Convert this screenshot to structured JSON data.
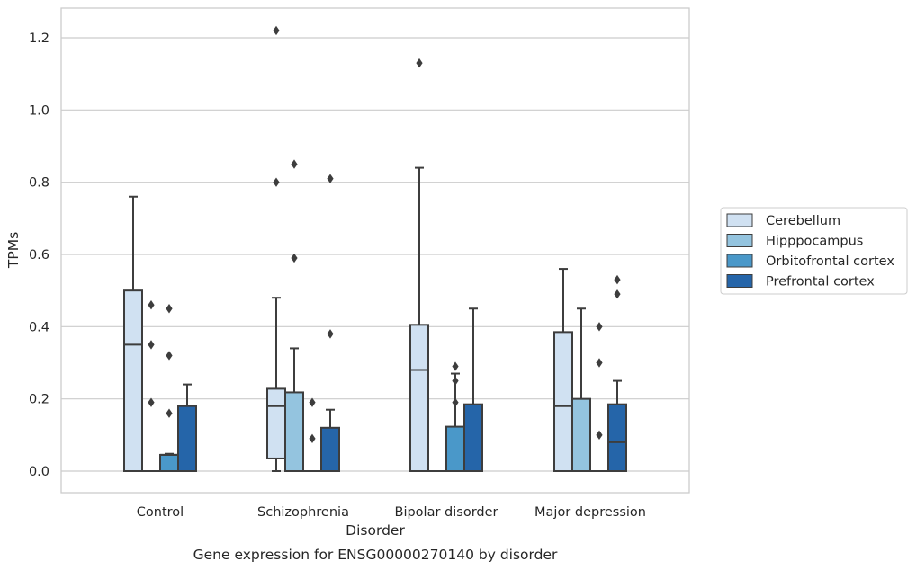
{
  "chart_data": {
    "type": "box",
    "xlabel": "Disorder",
    "ylabel": "TPMs",
    "caption": "Gene expression for ENSG00000270140 by disorder",
    "ylim": [
      -0.06,
      1.28
    ],
    "yticks": [
      0.0,
      0.2,
      0.4,
      0.6,
      0.8,
      1.0,
      1.2
    ],
    "ytick_labels": [
      "0.0",
      "0.2",
      "0.4",
      "0.6",
      "0.8",
      "1.0",
      "1.2"
    ],
    "grid": true,
    "legend_position": "right",
    "categories": [
      "Control",
      "Schizophrenia",
      "Bipolar disorder",
      "Major depression"
    ],
    "series": [
      {
        "name": "Cerebellum",
        "color": "#d0e1f2",
        "boxes": [
          {
            "q1": 0.0,
            "median": 0.35,
            "q3": 0.5,
            "whislo": 0.0,
            "whishi": 0.76,
            "fliers": []
          },
          {
            "q1": 0.035,
            "median": 0.18,
            "q3": 0.228,
            "whislo": 0.0,
            "whishi": 0.48,
            "fliers": [
              1.22,
              0.8
            ]
          },
          {
            "q1": 0.0,
            "median": 0.28,
            "q3": 0.405,
            "whislo": 0.0,
            "whishi": 0.84,
            "fliers": [
              1.13
            ]
          },
          {
            "q1": 0.0,
            "median": 0.18,
            "q3": 0.385,
            "whislo": 0.0,
            "whishi": 0.56,
            "fliers": []
          }
        ]
      },
      {
        "name": "Hipppocampus",
        "color": "#94c4df",
        "boxes": [
          {
            "q1": 0.0,
            "median": 0.0,
            "q3": 0.0,
            "whislo": 0.0,
            "whishi": 0.0,
            "fliers": [
              0.46,
              0.35,
              0.19
            ]
          },
          {
            "q1": 0.0,
            "median": 0.0,
            "q3": 0.218,
            "whislo": 0.0,
            "whishi": 0.34,
            "fliers": [
              0.85,
              0.59
            ]
          },
          {
            "q1": 0.0,
            "median": 0.0,
            "q3": 0.0,
            "whislo": 0.0,
            "whishi": 0.0,
            "fliers": []
          },
          {
            "q1": 0.0,
            "median": 0.0,
            "q3": 0.2,
            "whislo": 0.0,
            "whishi": 0.45,
            "fliers": []
          }
        ]
      },
      {
        "name": "Orbitofrontal cortex",
        "color": "#4a98c9",
        "boxes": [
          {
            "q1": 0.0,
            "median": 0.045,
            "q3": 0.045,
            "whislo": 0.0,
            "whishi": 0.048,
            "fliers": [
              0.45,
              0.32,
              0.16
            ]
          },
          {
            "q1": 0.0,
            "median": 0.0,
            "q3": 0.0,
            "whislo": 0.0,
            "whishi": 0.0,
            "fliers": [
              0.19,
              0.09
            ]
          },
          {
            "q1": 0.0,
            "median": 0.0,
            "q3": 0.123,
            "whislo": 0.0,
            "whishi": 0.27,
            "fliers": [
              0.29,
              0.25,
              0.19
            ]
          },
          {
            "q1": 0.0,
            "median": 0.0,
            "q3": 0.0,
            "whislo": 0.0,
            "whishi": 0.0,
            "fliers": [
              0.4,
              0.3,
              0.1
            ]
          }
        ]
      },
      {
        "name": "Prefrontal cortex",
        "color": "#2565a9",
        "boxes": [
          {
            "q1": 0.0,
            "median": 0.0,
            "q3": 0.18,
            "whislo": 0.0,
            "whishi": 0.24,
            "fliers": []
          },
          {
            "q1": 0.0,
            "median": 0.0,
            "q3": 0.12,
            "whislo": 0.0,
            "whishi": 0.17,
            "fliers": [
              0.81,
              0.38
            ]
          },
          {
            "q1": 0.0,
            "median": 0.0,
            "q3": 0.185,
            "whislo": 0.0,
            "whishi": 0.45,
            "fliers": []
          },
          {
            "q1": 0.0,
            "median": 0.08,
            "q3": 0.185,
            "whislo": 0.0,
            "whishi": 0.25,
            "fliers": [
              0.53,
              0.49
            ]
          }
        ]
      }
    ]
  }
}
